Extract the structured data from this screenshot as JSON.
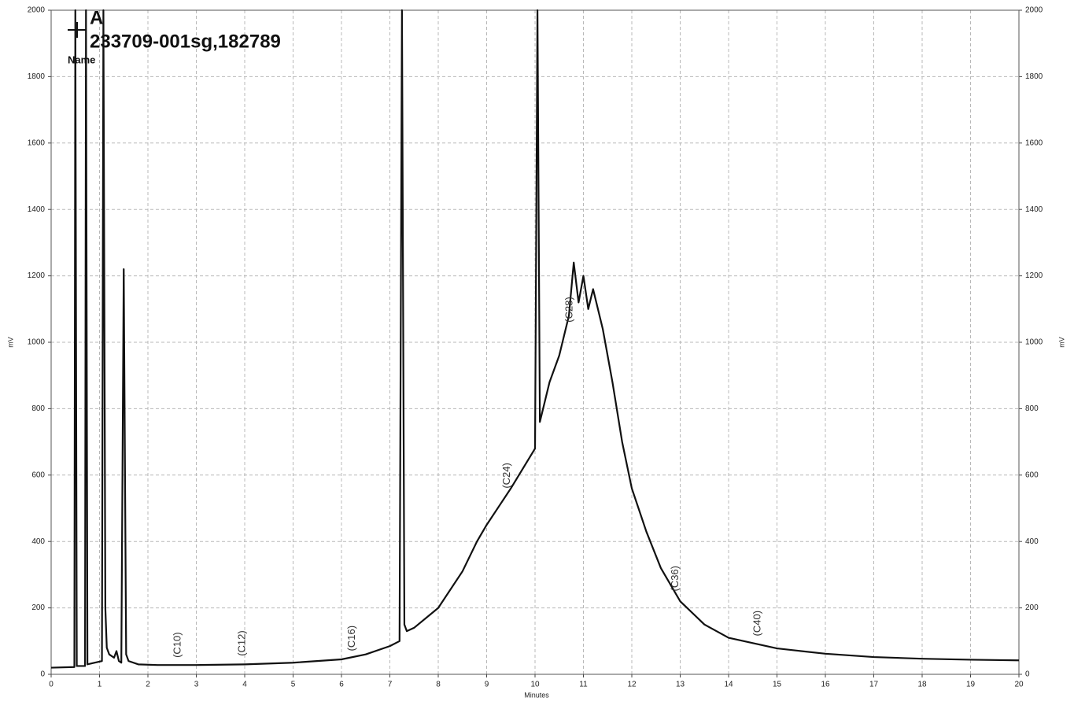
{
  "chart_data": {
    "type": "line",
    "series": [
      {
        "name": "A",
        "color": "#111111",
        "values": [
          20,
          22,
          2000,
          25,
          25,
          2000,
          30,
          40,
          2000,
          200,
          80,
          60,
          50,
          70,
          40,
          35,
          1220,
          60,
          40,
          30,
          28,
          28,
          30,
          35,
          45,
          60,
          85,
          100,
          2000,
          150,
          130,
          140,
          200,
          310,
          400,
          450,
          560,
          680,
          2000,
          760,
          880,
          960,
          1080,
          1240,
          1120,
          1200,
          1100,
          1160,
          1040,
          880,
          700,
          560,
          430,
          320,
          220,
          150,
          110,
          78,
          62,
          52,
          47,
          44,
          42
        ]
      }
    ],
    "x": [
      0,
      0.48,
      0.5,
      0.53,
      0.7,
      0.72,
      0.75,
      1.05,
      1.08,
      1.12,
      1.15,
      1.2,
      1.3,
      1.35,
      1.4,
      1.45,
      1.5,
      1.55,
      1.6,
      1.8,
      2.2,
      3,
      4,
      5,
      6,
      6.5,
      7,
      7.2,
      7.25,
      7.3,
      7.35,
      7.5,
      8,
      8.5,
      8.8,
      9,
      9.5,
      10,
      10.05,
      10.1,
      10.3,
      10.5,
      10.7,
      10.8,
      10.9,
      11,
      11.1,
      11.2,
      11.4,
      11.6,
      11.8,
      12,
      12.3,
      12.6,
      13,
      13.5,
      14,
      15,
      16,
      17,
      18,
      19,
      20
    ],
    "sample": "233709-001sg,182789",
    "legend_title": "Name",
    "xlabel": "Minutes",
    "ylabel": "mV",
    "y2label": "mV",
    "xlim": [
      0,
      20
    ],
    "xticks": [
      0,
      1,
      2,
      3,
      4,
      5,
      6,
      7,
      8,
      9,
      10,
      11,
      12,
      13,
      14,
      15,
      16,
      17,
      18,
      19,
      20
    ],
    "ylim": [
      0,
      2000
    ],
    "yticks": [
      0,
      200,
      400,
      600,
      800,
      1000,
      1200,
      1400,
      1600,
      1800,
      2000
    ],
    "y2lim": [
      0,
      2000
    ],
    "y2ticks": [
      0,
      200,
      400,
      600,
      800,
      1000,
      1200,
      1400,
      1600,
      1800,
      2000
    ],
    "grid": true,
    "annotations": [
      {
        "text": "(C10)",
        "x": 2.62,
        "y": 50
      },
      {
        "text": "(C12)",
        "x": 3.95,
        "y": 55
      },
      {
        "text": "(C16)",
        "x": 6.22,
        "y": 70
      },
      {
        "text": "(C24)",
        "x": 9.42,
        "y": 560
      },
      {
        "text": "(C28)",
        "x": 10.72,
        "y": 1060
      },
      {
        "text": "(C36)",
        "x": 12.9,
        "y": 250
      },
      {
        "text": "(C40)",
        "x": 14.6,
        "y": 115
      }
    ]
  }
}
